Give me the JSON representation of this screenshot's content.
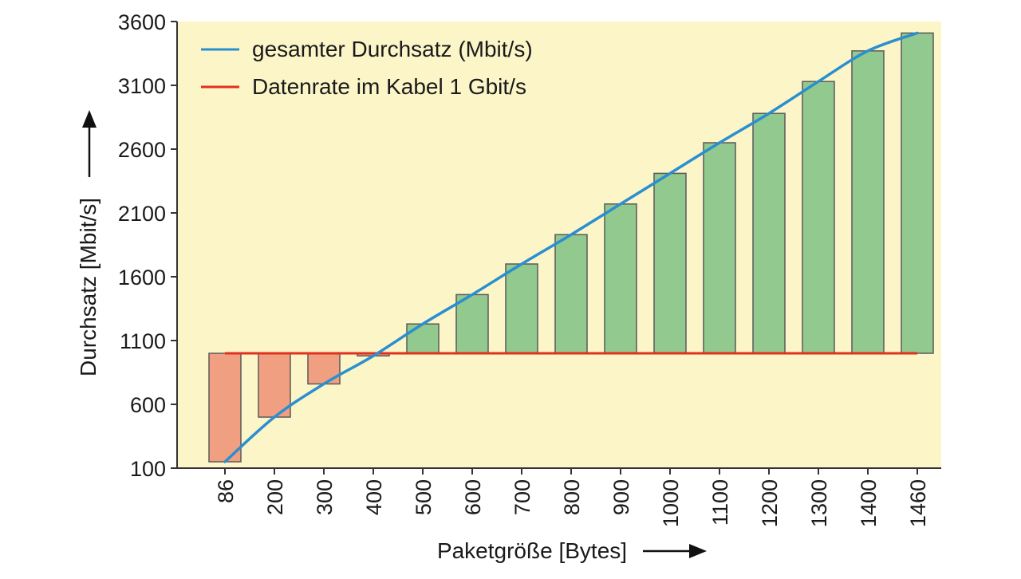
{
  "chart_data": {
    "type": "bar",
    "title": "",
    "xlabel": "Paketgröße [Bytes]",
    "ylabel": "Durchsatz [Mbit/s]",
    "ylim": [
      100,
      3600
    ],
    "yticks": [
      100,
      600,
      1100,
      1600,
      2100,
      2600,
      3100,
      3600
    ],
    "baseline": 1000,
    "categories": [
      "86",
      "200",
      "300",
      "400",
      "500",
      "600",
      "700",
      "800",
      "900",
      "1000",
      "1100",
      "1200",
      "1300",
      "1400",
      "1460"
    ],
    "series": [
      {
        "name": "gesamter Durchsatz (Mbit/s)",
        "kind": "line",
        "color": "#2a8fd0",
        "values": [
          150,
          500,
          760,
          980,
          1230,
          1460,
          1700,
          1930,
          2170,
          2410,
          2650,
          2880,
          3130,
          3370,
          3510
        ]
      },
      {
        "name": "Datenrate im Kabel 1 Gbit/s",
        "kind": "line",
        "color": "#e0301e",
        "values": [
          1000,
          1000,
          1000,
          1000,
          1000,
          1000,
          1000,
          1000,
          1000,
          1000,
          1000,
          1000,
          1000,
          1000,
          1000
        ]
      }
    ],
    "bar_colors": {
      "below": "#f0a080",
      "above": "#92c98f"
    },
    "plot_background": "#fbf5c8",
    "legend_position": "top-left",
    "grid": false
  }
}
